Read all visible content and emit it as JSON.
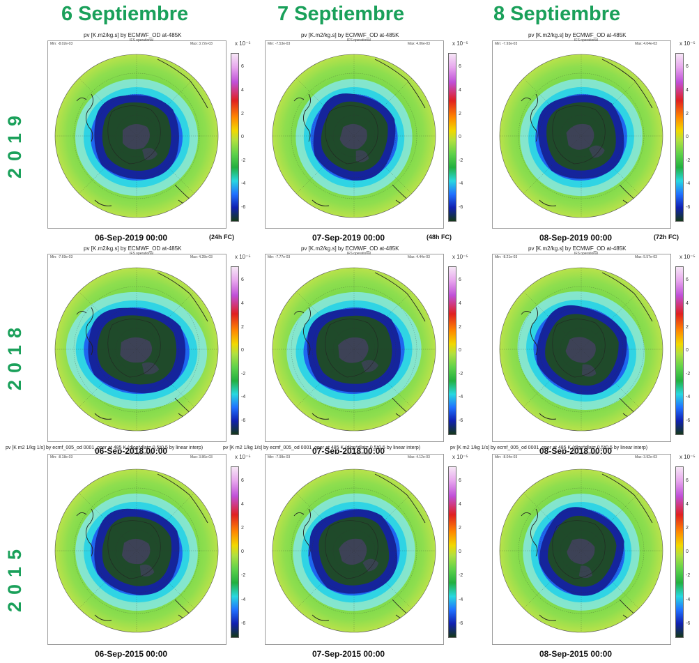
{
  "column_headers": [
    "6 Septiembre",
    "7 Septiembre",
    "8 Septiembre"
  ],
  "year_labels": [
    "2019",
    "2018",
    "2015"
  ],
  "colorbar": {
    "multiplier": "x 10⁻⁵",
    "ticks": [
      "6",
      "4",
      "2",
      "0",
      "-2",
      "-4",
      "-6"
    ],
    "colors": [
      "#f6e6f6",
      "#e8a8ee",
      "#c050d8",
      "#e02020",
      "#ff8800",
      "#f2d800",
      "#b0e040",
      "#5ed24a",
      "#22b040",
      "#28d8e0",
      "#2070ff",
      "#1020b0",
      "#143818"
    ]
  },
  "panel_subtitle": "IFS operational",
  "panels": [
    {
      "row": 0,
      "col": 0,
      "title": "pv [K.m2/kg.s] by ECMWF_OD at-485K",
      "min": "Min: -8.02e-03",
      "max": "Max: 3.72e-03",
      "date": "06-Sep-2019 00:00",
      "fc": "(24h FC)"
    },
    {
      "row": 0,
      "col": 1,
      "title": "pv [K.m2/kg.s] by ECMWF_OD at-485K",
      "min": "Min: -7.53e-03",
      "max": "Max: 4.06e-03",
      "date": "07-Sep-2019 00:00",
      "fc": "(48h FC)"
    },
    {
      "row": 0,
      "col": 2,
      "title": "pv [K.m2/kg.s] by ECMWF_OD at-485K",
      "min": "Min: -7.93e-03",
      "max": "Max: 4.04e-03",
      "date": "08-Sep-2019 00:00",
      "fc": "(72h FC)"
    },
    {
      "row": 1,
      "col": 0,
      "title": "pv [K.m2/kg.s] by ECMWF_OD at-485K",
      "min": "Min: -7.69e-03",
      "max": "Max: 4.28e-03",
      "date": "06-Sep-2018 00:00",
      "fc": ""
    },
    {
      "row": 1,
      "col": 1,
      "title": "pv [K.m2/kg.s] by ECMWF_OD at-485K",
      "min": "Min: -7.77e-03",
      "max": "Max: 4.44e-03",
      "date": "07-Sep-2018 00:00",
      "fc": ""
    },
    {
      "row": 1,
      "col": 2,
      "title": "pv [K.m2/kg.s] by ECMWF_OD at-485K",
      "min": "Min: -8.21e-03",
      "max": "Max: 5.57e-03",
      "date": "08-Sep-2018 00:00",
      "fc": ""
    },
    {
      "row": 2,
      "col": 0,
      "title": "pv [K m2 1/kg 1/s] by ecmf_005_od 0001_oper at 485 K (dlon*dlat= 0.5*0.5 by linear interp)",
      "min": "Min: -8.18e-03",
      "max": "Max: 3.86e-03",
      "date": "06-Sep-2015 00:00",
      "fc": ""
    },
    {
      "row": 2,
      "col": 1,
      "title": "pv [K m2 1/kg 1/s] by ecmf_005_od 0001_oper at 485 K (dlon*dlat= 0.5*0.5 by linear interp)",
      "min": "Min: -7.98e-03",
      "max": "Max: 4.12e-03",
      "date": "07-Sep-2015 00:00",
      "fc": ""
    },
    {
      "row": 2,
      "col": 2,
      "title": "pv [K m2 1/kg 1/s] by ecmf_005_od 0001_oper at 485 K (dlon*dlat= 0.5*0.5 by linear interp)",
      "min": "Min: -8.04e-03",
      "max": "Max: 3.92e-03",
      "date": "08-Sep-2015 00:00",
      "fc": ""
    }
  ]
}
